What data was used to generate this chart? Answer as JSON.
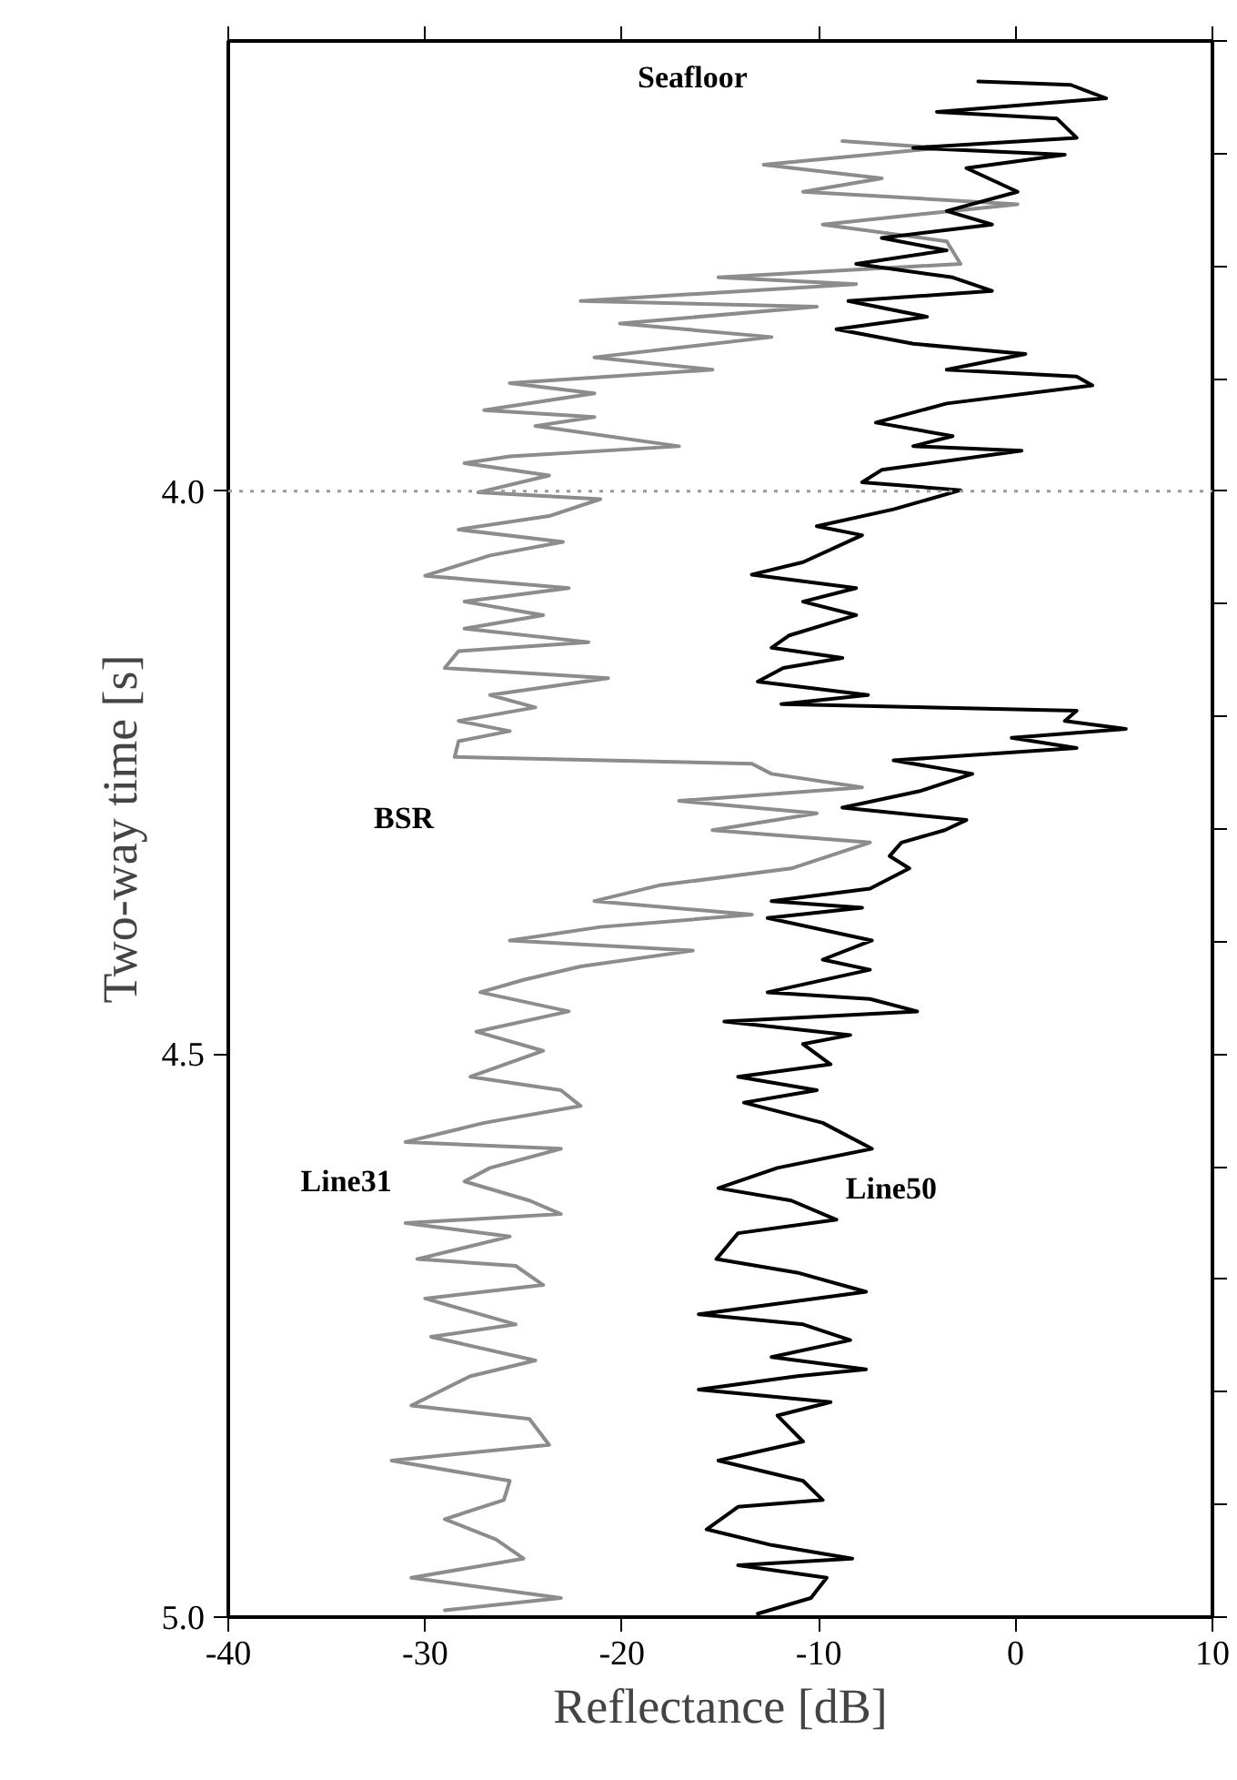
{
  "chart_data": {
    "type": "line",
    "xlabel": "Reflectance [dB]",
    "ylabel": "Two-way time [s]",
    "xlim": [
      -40,
      10
    ],
    "xticks": [
      -40,
      -30,
      -20,
      -10,
      0,
      10
    ],
    "ylim": [
      5.0,
      3.6
    ],
    "yticks": [
      {
        "value": 4.0,
        "label": "4.0"
      },
      {
        "value": 4.5,
        "label": "4.5"
      },
      {
        "value": 5.0,
        "label": "5.0"
      }
    ],
    "tick_labels": "xy",
    "grid": false,
    "marker": "none",
    "ref_lines": [
      {
        "axis": "y",
        "value": 4.0,
        "label": null,
        "color": "#999999",
        "line_style": "dotted"
      }
    ],
    "annotations": [
      "Seafloor",
      "BSR"
    ],
    "series": [
      {
        "name": "Line31",
        "color": "#8c8c8c",
        "line_style": "solid",
        "x": [
          -8.8,
          -3.8,
          -12.8,
          -6.8,
          -10.8,
          0.1,
          -9.8,
          -3.5,
          -2.8,
          -15.1,
          -8.1,
          -22.1,
          -10.1,
          -20.1,
          -12.4,
          -21.4,
          -15.4,
          -25.7,
          -21.4,
          -27.0,
          -21.4,
          -24.4,
          -17.1,
          -25.7,
          -28.0,
          -23.7,
          -27.3,
          -21.1,
          -23.7,
          -28.3,
          -23.0,
          -26.7,
          -30.0,
          -22.7,
          -28.0,
          -24.0,
          -28.0,
          -21.7,
          -28.3,
          -29.0,
          -20.7,
          -26.7,
          -24.4,
          -28.3,
          -25.7,
          -28.3,
          -28.5,
          -13.4,
          -12.4,
          -7.8,
          -17.1,
          -10.1,
          -15.4,
          -7.4,
          -11.4,
          -18.1,
          -21.4,
          -13.4,
          -21.1,
          -25.7,
          -16.4,
          -22.1,
          -25.0,
          -27.2,
          -22.7,
          -27.4,
          -24.0,
          -27.7,
          -23.1,
          -22.1,
          -27.0,
          -31.0,
          -23.1,
          -26.7,
          -28.0,
          -24.7,
          -23.1,
          -31.0,
          -25.7,
          -30.4,
          -25.4,
          -24.0,
          -30.0,
          -25.4,
          -29.7,
          -24.4,
          -27.7,
          -30.7,
          -24.7,
          -23.7,
          -31.7,
          -25.7,
          -26.0,
          -29.0,
          -26.4,
          -25.0,
          -30.7,
          -23.1,
          -29.0
        ],
        "values": [
          3.689,
          3.695,
          3.71,
          3.722,
          3.734,
          3.745,
          3.763,
          3.778,
          3.798,
          3.81,
          3.816,
          3.831,
          3.836,
          3.851,
          3.863,
          3.881,
          3.892,
          3.904,
          3.913,
          3.928,
          3.934,
          3.942,
          3.96,
          3.969,
          3.975,
          3.986,
          4.001,
          4.007,
          4.022,
          4.034,
          4.045,
          4.057,
          4.075,
          4.086,
          4.098,
          4.11,
          4.122,
          4.134,
          4.142,
          4.157,
          4.166,
          4.181,
          4.192,
          4.204,
          4.213,
          4.222,
          4.236,
          4.242,
          4.251,
          4.263,
          4.275,
          4.286,
          4.301,
          4.312,
          4.335,
          4.35,
          4.364,
          4.376,
          4.387,
          4.399,
          4.408,
          4.422,
          4.434,
          4.445,
          4.462,
          4.48,
          4.497,
          4.52,
          4.532,
          4.546,
          4.561,
          4.578,
          4.584,
          4.601,
          4.613,
          4.63,
          4.642,
          4.65,
          4.662,
          4.682,
          4.688,
          4.705,
          4.717,
          4.74,
          4.751,
          4.772,
          4.786,
          4.812,
          4.824,
          4.847,
          4.861,
          4.879,
          4.896,
          4.913,
          4.931,
          4.948,
          4.965,
          4.983,
          4.994
        ]
      },
      {
        "name": "Line50",
        "color": "#000000",
        "line_style": "solid",
        "x": [
          -1.9,
          2.8,
          4.6,
          -4.0,
          2.1,
          3.1,
          -5.2,
          2.5,
          -2.5,
          0.1,
          -3.5,
          -1.2,
          -6.8,
          -3.5,
          -8.1,
          -3.2,
          -1.2,
          -8.5,
          -4.5,
          -9.1,
          -5.2,
          0.5,
          -3.5,
          3.1,
          3.9,
          -3.5,
          -7.1,
          -3.2,
          -5.2,
          0.3,
          -6.8,
          -7.8,
          -2.8,
          -6.2,
          -10.1,
          -7.8,
          -10.8,
          -13.4,
          -8.1,
          -10.8,
          -8.1,
          -11.5,
          -12.4,
          -8.8,
          -11.8,
          -13.1,
          -7.5,
          -11.9,
          3.1,
          2.5,
          5.6,
          -0.2,
          3.1,
          -6.2,
          -2.2,
          -4.8,
          -8.8,
          -2.5,
          -3.6,
          -5.8,
          -6.4,
          -5.4,
          -7.4,
          -12.4,
          -7.8,
          -12.6,
          -7.3,
          -9.8,
          -7.4,
          -12.6,
          -7.4,
          -5.0,
          -14.8,
          -8.4,
          -10.8,
          -9.4,
          -14.1,
          -10.1,
          -13.8,
          -9.8,
          -7.3,
          -12.1,
          -15.1,
          -11.4,
          -9.1,
          -14.1,
          -15.2,
          -11.1,
          -7.6,
          -16.1,
          -10.8,
          -8.4,
          -12.4,
          -7.6,
          -11.1,
          -16.1,
          -9.4,
          -12.1,
          -10.8,
          -15.1,
          -10.8,
          -9.8,
          -14.1,
          -15.7,
          -12.4,
          -8.3,
          -14.1,
          -9.6,
          -10.4,
          -13.1
        ],
        "values": [
          3.636,
          3.639,
          3.651,
          3.663,
          3.669,
          3.686,
          3.695,
          3.701,
          3.713,
          3.734,
          3.751,
          3.763,
          3.775,
          3.786,
          3.798,
          3.81,
          3.822,
          3.831,
          3.845,
          3.856,
          3.869,
          3.878,
          3.892,
          3.898,
          3.906,
          3.922,
          3.939,
          3.951,
          3.96,
          3.964,
          3.981,
          3.992,
          3.999,
          4.016,
          4.031,
          4.039,
          4.063,
          4.074,
          4.086,
          4.098,
          4.11,
          4.128,
          4.139,
          4.148,
          4.157,
          4.169,
          4.181,
          4.189,
          4.195,
          4.204,
          4.211,
          4.219,
          4.228,
          4.239,
          4.251,
          4.266,
          4.281,
          4.292,
          4.301,
          4.312,
          4.324,
          4.335,
          4.353,
          4.364,
          4.37,
          4.379,
          4.399,
          4.416,
          4.425,
          4.445,
          4.451,
          4.462,
          4.471,
          4.483,
          4.491,
          4.509,
          4.52,
          4.532,
          4.543,
          4.561,
          4.584,
          4.601,
          4.619,
          4.63,
          4.647,
          4.659,
          4.682,
          4.694,
          4.711,
          4.731,
          4.74,
          4.754,
          4.769,
          4.78,
          4.786,
          4.798,
          4.809,
          4.821,
          4.844,
          4.861,
          4.879,
          4.896,
          4.902,
          4.922,
          4.936,
          4.948,
          4.954,
          4.965,
          4.983,
          4.997
        ]
      }
    ]
  }
}
